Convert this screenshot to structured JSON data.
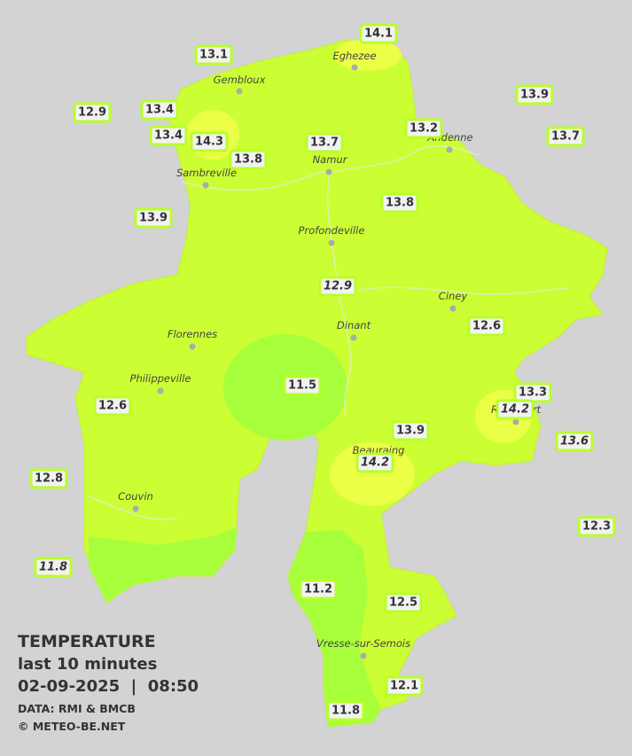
{
  "legend": {
    "title": "TEMPERATURE",
    "period": "last 10 minutes",
    "timestamp": "02-09-2025  |  08:50",
    "source": "DATA: RMI & BMCB",
    "copyright": "© METEO-BE.NET"
  },
  "towns": [
    "Eghezee",
    "Gembloux",
    "Andenne",
    "Namur",
    "Sambreville",
    "Profondeville",
    "Ciney",
    "Dinant",
    "Florennes",
    "Philippeville",
    "Rochefort",
    "Beauraing",
    "Couvin",
    "Vresse-sur-Semois"
  ],
  "stations": [
    13.1,
    14.1,
    12.9,
    13.4,
    13.4,
    14.3,
    13.8,
    13.7,
    13.2,
    13.9,
    13.7,
    13.9,
    13.8,
    12.9,
    12.6,
    11.5,
    12.6,
    13.3,
    14.2,
    13.9,
    13.6,
    14.2,
    12.8,
    12.3,
    11.8,
    11.2,
    12.5,
    12.1,
    11.8
  ]
}
